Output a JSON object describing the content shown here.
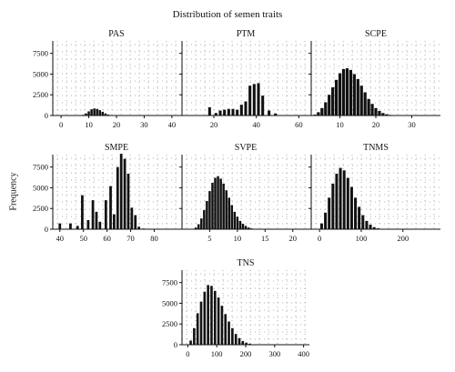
{
  "figure": {
    "title": "Distribution of semen traits",
    "ylabel": "Frequency"
  },
  "chart_data": [
    {
      "type": "bar",
      "title": "PAS",
      "xlim": [
        -3,
        43
      ],
      "ylim": [
        0,
        9000
      ],
      "xticks": [
        0,
        10,
        20,
        30,
        40
      ],
      "yticks": [
        0,
        2500,
        5000,
        7500
      ],
      "bin_width": 1,
      "x": [
        8,
        9,
        10,
        11,
        12,
        13,
        14,
        15,
        16,
        17,
        18
      ],
      "values": [
        80,
        250,
        500,
        750,
        850,
        800,
        650,
        450,
        250,
        120,
        40
      ]
    },
    {
      "type": "bar",
      "title": "PTM",
      "xlim": [
        5,
        65
      ],
      "ylim": [
        0,
        9000
      ],
      "xticks": [
        20,
        40,
        60
      ],
      "yticks": [
        0,
        2500,
        5000,
        7500
      ],
      "bin_width": 1.6,
      "x": [
        18,
        21,
        23,
        25,
        27,
        29,
        31,
        33,
        35,
        37,
        39,
        41,
        43,
        46,
        49
      ],
      "values": [
        1000,
        300,
        600,
        700,
        800,
        800,
        700,
        1300,
        1700,
        3600,
        3800,
        3900,
        2400,
        600,
        250
      ]
    },
    {
      "type": "bar",
      "title": "SCPE",
      "xlim": [
        2,
        38
      ],
      "ylim": [
        0,
        9000
      ],
      "xticks": [
        10,
        20,
        30
      ],
      "yticks": [
        0,
        2500,
        5000,
        7500
      ],
      "bin_width": 1,
      "x": [
        3,
        4,
        5,
        6,
        7,
        8,
        9,
        10,
        11,
        12,
        13,
        14,
        15,
        16,
        17,
        18,
        19,
        20,
        21,
        22,
        23,
        24,
        25
      ],
      "values": [
        100,
        400,
        900,
        1600,
        2500,
        3400,
        4300,
        5100,
        5600,
        5700,
        5500,
        5000,
        4400,
        3600,
        2800,
        2000,
        1400,
        900,
        550,
        300,
        150,
        70,
        30
      ]
    },
    {
      "type": "bar",
      "title": "SMPE",
      "xlim": [
        37,
        91
      ],
      "ylim": [
        0,
        9000
      ],
      "xticks": [
        40,
        50,
        60,
        70,
        80
      ],
      "yticks": [
        0,
        2500,
        5000,
        7500
      ],
      "bin_width": 1.3,
      "x": [
        40,
        44.5,
        47.5,
        49.5,
        52,
        54,
        55.5,
        57,
        59.5,
        61.5,
        63,
        64.5,
        66,
        67.5,
        69,
        70.5,
        72,
        73.5,
        75.5
      ],
      "values": [
        700,
        700,
        400,
        4100,
        1100,
        3500,
        2100,
        900,
        3500,
        5200,
        1800,
        7500,
        9100,
        8500,
        6700,
        2600,
        1700,
        300,
        80
      ]
    },
    {
      "type": "bar",
      "title": "SVPE",
      "xlim": [
        0,
        23
      ],
      "ylim": [
        0,
        9000
      ],
      "xticks": [
        5,
        10,
        15,
        20
      ],
      "yticks": [
        0,
        2500,
        5000,
        7500
      ],
      "bin_width": 0.5,
      "x": [
        2.5,
        3,
        3.5,
        4,
        4.5,
        5,
        5.5,
        6,
        6.5,
        7,
        7.5,
        8,
        8.5,
        9,
        9.5,
        10,
        10.5,
        11,
        11.5,
        12,
        12.5,
        13
      ],
      "values": [
        200,
        600,
        1300,
        2300,
        3400,
        4600,
        5600,
        6200,
        6400,
        6100,
        5500,
        4700,
        3800,
        2900,
        2100,
        1500,
        1000,
        650,
        400,
        200,
        100,
        40
      ]
    },
    {
      "type": "bar",
      "title": "TNMS",
      "xlim": [
        -20,
        290
      ],
      "ylim": [
        0,
        9000
      ],
      "xticks": [
        0,
        100,
        200
      ],
      "yticks": [
        0,
        2500,
        5000,
        7500
      ],
      "bin_width": 8,
      "x": [
        5,
        14,
        23,
        32,
        41,
        50,
        59,
        68,
        77,
        86,
        95,
        104,
        113,
        122,
        131,
        140,
        149
      ],
      "values": [
        700,
        2000,
        3800,
        5500,
        6700,
        7400,
        7100,
        6200,
        5100,
        3800,
        2700,
        1700,
        1000,
        550,
        250,
        100,
        40
      ]
    },
    {
      "type": "bar",
      "title": "TNS",
      "xlim": [
        -20,
        420
      ],
      "ylim": [
        0,
        9000
      ],
      "xticks": [
        0,
        100,
        200,
        300,
        400
      ],
      "yticks": [
        0,
        2500,
        5000,
        7500
      ],
      "bin_width": 10,
      "x": [
        10,
        22,
        34,
        46,
        58,
        70,
        82,
        94,
        106,
        118,
        130,
        142,
        154,
        166,
        178,
        190,
        202,
        214,
        226
      ],
      "values": [
        500,
        2000,
        3800,
        5200,
        6400,
        7200,
        7100,
        6500,
        5700,
        4700,
        3700,
        2800,
        2000,
        1300,
        800,
        450,
        250,
        120,
        50
      ]
    }
  ]
}
